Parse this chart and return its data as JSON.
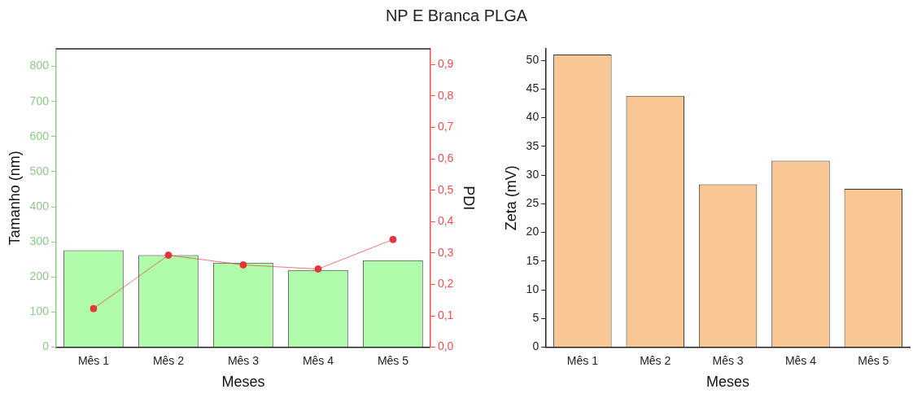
{
  "chart_data": [
    {
      "type": "bar",
      "title": "NP E Branca PLGA",
      "xlabel": "Meses",
      "ylabel": "Tamanho (nm)",
      "y2label": "PDI",
      "categories": [
        "Mês 1",
        "Mês 2",
        "Mês 3",
        "Mês 4",
        "Mês 5"
      ],
      "series": [
        {
          "color": "#b0fcaa",
          "values": [
            276,
            262,
            241,
            220,
            248
          ]
        },
        {
          "type": "line",
          "axis": "y2",
          "color": "#e8333a",
          "marker": "circle",
          "values": [
            0.123,
            0.293,
            0.262,
            0.249,
            0.343
          ]
        }
      ],
      "ylim": [
        0,
        850
      ],
      "yticks": [
        0,
        100,
        200,
        300,
        400,
        500,
        600,
        700,
        800
      ],
      "y2lim": [
        0,
        0.95
      ],
      "y2ticks": [
        {
          "value": 0,
          "label": "0,0"
        },
        {
          "value": 0.1,
          "label": "0,1"
        },
        {
          "value": 0.2,
          "label": "0,2"
        },
        {
          "value": 0.3,
          "label": "0,3"
        },
        {
          "value": 0.4,
          "label": "0,4"
        },
        {
          "value": 0.5,
          "label": "0,5"
        },
        {
          "value": 0.6,
          "label": "0,6"
        },
        {
          "value": 0.7,
          "label": "0,7"
        },
        {
          "value": 0.8,
          "label": "0,8"
        },
        {
          "value": 0.9,
          "label": "0,9"
        }
      ],
      "grid": false,
      "legend": false
    },
    {
      "type": "bar",
      "xlabel": "Meses",
      "ylabel": "Zeta (mV)",
      "categories": [
        "Mês 1",
        "Mês 2",
        "Mês 3",
        "Mês 4",
        "Mês 5"
      ],
      "series": [
        {
          "color": "#f9c794",
          "values": [
            51.0,
            43.8,
            28.4,
            32.5,
            27.6
          ]
        }
      ],
      "ylim": [
        0,
        52
      ],
      "yticks": [
        0,
        5,
        10,
        15,
        20,
        25,
        30,
        35,
        40,
        45,
        50
      ],
      "grid": false,
      "legend": false
    }
  ]
}
